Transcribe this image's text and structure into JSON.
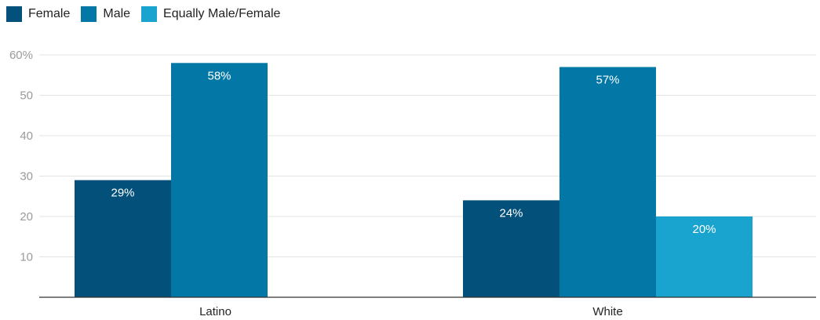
{
  "colors": {
    "female": "#03507a",
    "male": "#0378a6",
    "equally": "#19a3cf",
    "grid": "#e3e3e3",
    "axis": "#333333"
  },
  "chart_data": {
    "type": "bar",
    "categories": [
      "Latino",
      "White"
    ],
    "series": [
      {
        "name": "Female",
        "values": [
          29,
          24
        ],
        "labels": [
          "29%",
          "24%"
        ]
      },
      {
        "name": "Male",
        "values": [
          58,
          57
        ],
        "labels": [
          "58%",
          "57%"
        ]
      },
      {
        "name": "Equally Male/Female",
        "values": [
          null,
          20
        ],
        "labels": [
          "",
          "20%"
        ]
      }
    ],
    "ylim": [
      0,
      60
    ],
    "yticks": [
      10,
      20,
      30,
      40,
      50,
      60
    ],
    "ytick_labels": [
      "10",
      "20",
      "30",
      "40",
      "50",
      "60%"
    ],
    "grid": true,
    "legend_position": "top-left",
    "title": "",
    "xlabel": "",
    "ylabel": ""
  }
}
